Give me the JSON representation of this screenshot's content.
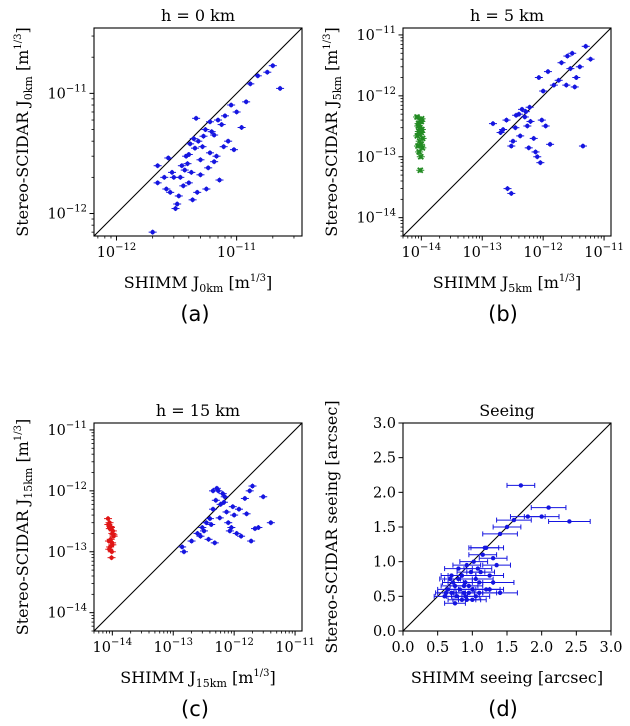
{
  "chart_data": [
    {
      "type": "scatter",
      "title": "h = 0 km",
      "panel_label": "(a)",
      "xlabel": {
        "main": "SHIMM J",
        "sub": "0km",
        "unit": "[m",
        "unit_sup": "1/3",
        "unit_end": "]"
      },
      "ylabel": {
        "main": "Stereo-SCIDAR J",
        "sub": "0km",
        "unit": "[m",
        "unit_sup": "1/3",
        "unit_end": "]"
      },
      "scale": "log",
      "xlim": [
        6.5e-13,
        3.5e-11
      ],
      "ylim": [
        6.5e-13,
        3.5e-11
      ],
      "xticks": [
        {
          "value": 1e-12,
          "label": "10",
          "exp": "−12"
        },
        {
          "value": 1e-11,
          "label": "10",
          "exp": "−11"
        }
      ],
      "yticks": [
        {
          "value": 1e-12,
          "label": "10",
          "exp": "−12"
        },
        {
          "value": 1e-11,
          "label": "10",
          "exp": "−11"
        }
      ],
      "series": [
        {
          "color": "#1515e0",
          "marker": "circle",
          "x": [
            2.2e-12,
            2.5e-12,
            2.8e-12,
            3e-12,
            3.2e-12,
            3.5e-12,
            3.8e-12,
            4e-12,
            4.2e-12,
            4.5e-12,
            4.8e-12,
            5e-12,
            5.5e-12,
            6e-12,
            6.5e-12,
            7e-12,
            7.5e-12,
            8e-12,
            9e-12,
            1e-11,
            1.2e-11,
            1.5e-11,
            1.8e-11,
            2e-11,
            2.3e-11,
            2.2e-12,
            2.6e-12,
            2.9e-12,
            3.3e-12,
            3.6e-12,
            3.9e-12,
            4.1e-12,
            4.4e-12,
            4.7e-12,
            5.2e-12,
            5.8e-12,
            6.2e-12,
            6.8e-12,
            7.2e-12,
            8.5e-12,
            9.5e-12,
            4.3e-12,
            5e-12,
            5.6e-12,
            6.5e-12,
            3.7e-12,
            4.6e-12,
            3.1e-12,
            2.7e-12,
            5.3e-12,
            6e-12,
            7.8e-12,
            1.1e-11,
            1.3e-11,
            3.4e-12,
            4e-12,
            2e-12
          ],
          "y": [
            2.5e-12,
            2e-12,
            1.5e-12,
            2e-12,
            1.2e-12,
            2.5e-12,
            3e-12,
            1.8e-12,
            2.2e-12,
            3.5e-12,
            4e-12,
            2.8e-12,
            5e-12,
            3.2e-12,
            4.5e-12,
            6e-12,
            5.5e-12,
            6.5e-12,
            8e-12,
            7e-12,
            8.5e-12,
            1.4e-11,
            1.5e-11,
            1.7e-11,
            1.1e-11,
            1.8e-12,
            1.6e-12,
            2.2e-12,
            1.4e-12,
            1.7e-12,
            2.6e-12,
            3.8e-12,
            4.2e-12,
            1.5e-12,
            3.6e-12,
            2.4e-12,
            4.8e-12,
            3e-12,
            1.9e-12,
            4e-12,
            3.4e-12,
            1.3e-12,
            2.1e-12,
            1.6e-12,
            2.7e-12,
            2.3e-12,
            6.2e-12,
            1.1e-12,
            2.9e-12,
            4.4e-12,
            5.8e-12,
            3.6e-12,
            5.2e-12,
            1.2e-11,
            2e-12,
            3.1e-12,
            7e-13
          ]
        }
      ]
    },
    {
      "type": "scatter",
      "title": "h = 5 km",
      "panel_label": "(b)",
      "xlabel": {
        "main": "SHIMM J",
        "sub": "5km",
        "unit": "[m",
        "unit_sup": "1/3",
        "unit_end": "]"
      },
      "ylabel": {
        "main": "Stereo-SCIDAR J",
        "sub": "5km",
        "unit": "[m",
        "unit_sup": "1/3",
        "unit_end": "]"
      },
      "scale": "log",
      "xlim": [
        5e-15,
        1.3e-11
      ],
      "ylim": [
        5e-15,
        1.3e-11
      ],
      "xticks": [
        {
          "value": 1e-14,
          "label": "10",
          "exp": "−14"
        },
        {
          "value": 1e-13,
          "label": "10",
          "exp": "−13"
        },
        {
          "value": 1e-12,
          "label": "10",
          "exp": "−12"
        },
        {
          "value": 1e-11,
          "label": "10",
          "exp": "−11"
        }
      ],
      "yticks": [
        {
          "value": 1e-14,
          "label": "10",
          "exp": "−14"
        },
        {
          "value": 1e-13,
          "label": "10",
          "exp": "−13"
        },
        {
          "value": 1e-12,
          "label": "10",
          "exp": "−12"
        },
        {
          "value": 1e-11,
          "label": "10",
          "exp": "−11"
        }
      ],
      "series": [
        {
          "color": "#1515e0",
          "marker": "circle",
          "x": [
            1.5e-13,
            2e-13,
            2.5e-13,
            3e-13,
            3.5e-13,
            4e-13,
            4.5e-13,
            5e-13,
            5.5e-13,
            6e-13,
            7e-13,
            8e-13,
            9e-13,
            1e-12,
            1.2e-12,
            1.5e-12,
            1.8e-12,
            2e-12,
            2.5e-12,
            3e-12,
            3.5e-12,
            4e-12,
            5e-12,
            6e-12,
            2.2e-13,
            3.2e-13,
            4.2e-13,
            5.2e-13,
            6.2e-13,
            7.5e-13,
            8.5e-13,
            1.1e-12,
            1.3e-12,
            2.8e-12,
            3.6e-13,
            5.8e-13,
            9.5e-13,
            2.4e-12,
            3.3e-12,
            4.5e-12,
            2.6e-13,
            3e-13
          ],
          "y": [
            3.5e-13,
            2.5e-13,
            4e-13,
            1.5e-13,
            3e-13,
            5e-13,
            6e-13,
            4.5e-13,
            3.2e-13,
            6.5e-13,
            2e-13,
            1e-13,
            8e-14,
            1.2e-12,
            2.5e-12,
            1.5e-12,
            1.8e-12,
            3.5e-12,
            4.5e-12,
            5e-12,
            2e-12,
            3e-12,
            6.5e-12,
            4e-12,
            2.8e-13,
            1.8e-13,
            2.2e-13,
            5.5e-13,
            3.8e-13,
            1.2e-13,
            2e-12,
            3.2e-13,
            1.6e-13,
            2.8e-12,
            4.8e-13,
            1.4e-13,
            4e-13,
            1.5e-12,
            1.4e-12,
            1.5e-13,
            3e-14,
            2.5e-14
          ]
        },
        {
          "color": "#228b22",
          "marker": "x",
          "x": [
            8.5e-15,
            9e-15,
            9.5e-15,
            1e-14,
            1.05e-14,
            8.8e-15,
            9.2e-15,
            9.8e-15,
            1.02e-14,
            8.6e-15,
            9.4e-15,
            1e-14,
            9.1e-15,
            9.7e-15,
            1.04e-14,
            8.9e-15,
            9.3e-15,
            9.9e-15,
            9.6e-15,
            1.01e-14
          ],
          "y": [
            4.5e-13,
            3.5e-13,
            3e-13,
            2.5e-13,
            2e-13,
            1.5e-13,
            1.2e-13,
            1e-13,
            2.8e-13,
            2.2e-13,
            1.8e-13,
            3.8e-13,
            2.6e-13,
            4e-13,
            1.4e-13,
            3.2e-13,
            2.4e-13,
            1.6e-13,
            6e-14,
            4.2e-13
          ]
        }
      ]
    },
    {
      "type": "scatter",
      "title": "h = 15 km",
      "panel_label": "(c)",
      "xlabel": {
        "main": "SHIMM J",
        "sub": "15km",
        "unit": "[m",
        "unit_sup": "1/3",
        "unit_end": "]"
      },
      "ylabel": {
        "main": "Stereo-SCIDAR J",
        "sub": "15km",
        "unit": "[m",
        "unit_sup": "1/3",
        "unit_end": "]"
      },
      "scale": "log",
      "xlim": [
        5e-15,
        1.3e-11
      ],
      "ylim": [
        5e-15,
        1.3e-11
      ],
      "xticks": [
        {
          "value": 1e-14,
          "label": "10",
          "exp": "−14"
        },
        {
          "value": 1e-13,
          "label": "10",
          "exp": "−13"
        },
        {
          "value": 1e-12,
          "label": "10",
          "exp": "−12"
        },
        {
          "value": 1e-11,
          "label": "10",
          "exp": "−11"
        }
      ],
      "yticks": [
        {
          "value": 1e-14,
          "label": "10",
          "exp": "−14"
        },
        {
          "value": 1e-13,
          "label": "10",
          "exp": "−13"
        },
        {
          "value": 1e-12,
          "label": "10",
          "exp": "−12"
        },
        {
          "value": 1e-11,
          "label": "10",
          "exp": "−11"
        }
      ],
      "series": [
        {
          "color": "#1515e0",
          "marker": "circle",
          "x": [
            1.5e-13,
            2e-13,
            2.5e-13,
            3e-13,
            3.5e-13,
            4e-13,
            4.5e-13,
            5e-13,
            5.5e-13,
            6e-13,
            7e-13,
            8e-13,
            9e-13,
            1e-12,
            1.2e-12,
            1.5e-12,
            1.8e-12,
            2e-12,
            2.5e-12,
            3e-12,
            4e-12,
            4.5e-13,
            5.2e-13,
            6.5e-13,
            7.5e-13,
            8.5e-13,
            3.8e-13,
            4.2e-13,
            1.1e-12,
            1.3e-12,
            2.2e-12,
            5.8e-13,
            6.8e-13,
            1.6e-12,
            3.2e-13,
            2.8e-13,
            1.4e-13,
            9.5e-13,
            1.9e-12,
            4.8e-13
          ],
          "y": [
            1e-13,
            1.5e-13,
            2e-13,
            2.5e-13,
            3e-13,
            3.5e-13,
            5e-13,
            7e-13,
            1e-12,
            6e-13,
            8e-13,
            3e-13,
            2.5e-13,
            4e-13,
            5e-13,
            7.5e-13,
            1e-12,
            1.2e-12,
            2.5e-13,
            8e-13,
            3e-13,
            1e-12,
            1.1e-12,
            9e-13,
            4.5e-13,
            2.2e-13,
            1.6e-13,
            2.8e-13,
            2e-13,
            1.8e-13,
            2.4e-13,
            3.6e-13,
            6.5e-13,
            4.2e-13,
            2.2e-13,
            1.8e-13,
            1.2e-13,
            5.5e-13,
            1.5e-13,
            1.4e-13
          ]
        },
        {
          "color": "#e01515",
          "marker": "circle",
          "x": [
            8.5e-15,
            9e-15,
            9.5e-15,
            1e-14,
            1.05e-14,
            8.8e-15,
            9.2e-15,
            9.8e-15,
            1.02e-14,
            8.6e-15,
            9.4e-15,
            1e-14,
            9.1e-15,
            9.7e-15,
            1.04e-14,
            8.9e-15,
            9.3e-15,
            9.9e-15
          ],
          "y": [
            3.5e-13,
            3e-13,
            2.5e-13,
            2e-13,
            1.8e-13,
            1.5e-13,
            1.2e-13,
            1e-13,
            2.2e-13,
            2.8e-13,
            1.6e-13,
            1.3e-13,
            2.4e-13,
            8e-14,
            1.9e-13,
            1.1e-13,
            2.6e-13,
            1.4e-13
          ]
        }
      ]
    },
    {
      "type": "scatter",
      "title": "Seeing",
      "panel_label": "(d)",
      "xlabel": {
        "main": "SHIMM seeing [arcsec]"
      },
      "ylabel": {
        "main": "Stereo-SCIDAR seeing [arcsec]"
      },
      "scale": "linear",
      "xlim": [
        0.0,
        3.0
      ],
      "ylim": [
        0.0,
        3.0
      ],
      "xticks": [
        {
          "value": 0.0,
          "label": "0.0"
        },
        {
          "value": 0.5,
          "label": "0.5"
        },
        {
          "value": 1.0,
          "label": "1.0"
        },
        {
          "value": 1.5,
          "label": "1.5"
        },
        {
          "value": 2.0,
          "label": "2.0"
        },
        {
          "value": 2.5,
          "label": "2.5"
        },
        {
          "value": 3.0,
          "label": "3.0"
        }
      ],
      "yticks": [
        {
          "value": 0.0,
          "label": "0.0"
        },
        {
          "value": 0.5,
          "label": "0.5"
        },
        {
          "value": 1.0,
          "label": "1.0"
        },
        {
          "value": 1.5,
          "label": "1.5"
        },
        {
          "value": 2.0,
          "label": "2.0"
        },
        {
          "value": 2.5,
          "label": "2.5"
        },
        {
          "value": 3.0,
          "label": "3.0"
        }
      ],
      "series": [
        {
          "color": "#1515e0",
          "marker": "circle",
          "x": [
            0.6,
            0.65,
            0.7,
            0.72,
            0.75,
            0.78,
            0.8,
            0.82,
            0.85,
            0.88,
            0.9,
            0.92,
            0.95,
            0.98,
            1.0,
            1.02,
            1.05,
            1.08,
            1.1,
            1.15,
            1.2,
            1.25,
            1.3,
            1.35,
            1.4,
            1.5,
            1.6,
            1.7,
            1.8,
            2.0,
            2.1,
            2.4,
            0.7,
            0.8,
            0.9,
            1.0,
            1.1,
            1.2,
            0.75,
            0.85,
            0.95,
            1.05,
            0.68,
            0.88,
            1.12,
            1.25,
            0.62,
            0.92,
            1.18,
            1.3,
            1.4
          ],
          "y": [
            0.5,
            0.6,
            0.55,
            0.7,
            0.65,
            0.5,
            0.75,
            0.6,
            0.8,
            0.55,
            0.7,
            0.45,
            0.65,
            0.85,
            0.6,
            1.0,
            0.75,
            0.9,
            0.55,
            1.1,
            1.2,
            0.8,
            1.05,
            0.95,
            1.4,
            1.5,
            1.6,
            2.1,
            1.65,
            1.65,
            1.78,
            1.58,
            0.8,
            0.9,
            0.5,
            0.45,
            0.7,
            0.6,
            0.4,
            0.45,
            0.55,
            0.5,
            0.75,
            0.65,
            0.85,
            0.6,
            0.55,
            0.95,
            1.2,
            0.7,
            0.55
          ],
          "xerr": [
            0.15,
            0.15,
            0.2,
            0.15,
            0.2,
            0.15,
            0.2,
            0.2,
            0.2,
            0.15,
            0.25,
            0.2,
            0.2,
            0.2,
            0.25,
            0.2,
            0.25,
            0.2,
            0.25,
            0.2,
            0.25,
            0.2,
            0.2,
            0.2,
            0.25,
            0.2,
            0.25,
            0.2,
            0.25,
            0.25,
            0.25,
            0.3,
            0.15,
            0.2,
            0.2,
            0.2,
            0.2,
            0.2,
            0.15,
            0.2,
            0.2,
            0.2,
            0.15,
            0.2,
            0.2,
            0.2,
            0.15,
            0.2,
            0.2,
            0.3,
            0.25
          ]
        }
      ]
    }
  ]
}
